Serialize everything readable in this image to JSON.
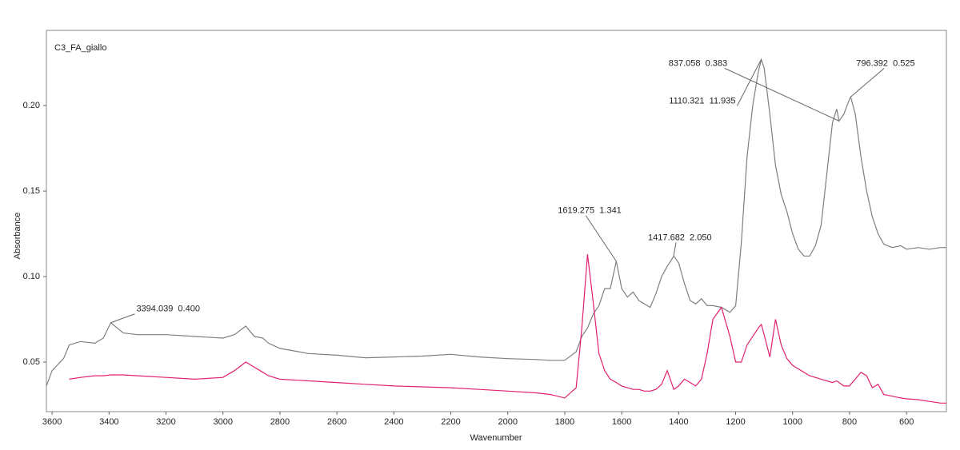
{
  "chart_data": {
    "type": "line",
    "title": "C3_FA_giallo",
    "x_label": "Wavenumber",
    "y_label": "Absorbance",
    "xlim": [
      3620,
      460
    ],
    "ylim": [
      0.021,
      0.244
    ],
    "xticks": [
      3600,
      3400,
      3200,
      3000,
      2800,
      2600,
      2400,
      2200,
      2000,
      1800,
      1600,
      1400,
      1200,
      1000,
      800,
      600
    ],
    "yticks": [
      0.05,
      {
        "value": 0.1,
        "label": "0.10"
      },
      0.15,
      {
        "value": 0.2,
        "label": "0.20"
      }
    ],
    "x": [
      3620,
      3600,
      3560,
      3540,
      3500,
      3450,
      3420,
      3394,
      3350,
      3300,
      3200,
      3100,
      3000,
      2960,
      2920,
      2890,
      2860,
      2840,
      2800,
      2700,
      2600,
      2500,
      2400,
      2300,
      2200,
      2100,
      2000,
      1900,
      1850,
      1800,
      1760,
      1740,
      1720,
      1700,
      1680,
      1660,
      1640,
      1619,
      1600,
      1580,
      1560,
      1540,
      1520,
      1500,
      1480,
      1460,
      1440,
      1417,
      1400,
      1380,
      1360,
      1340,
      1320,
      1300,
      1280,
      1250,
      1220,
      1200,
      1180,
      1160,
      1140,
      1120,
      1110,
      1100,
      1080,
      1060,
      1040,
      1020,
      1000,
      980,
      960,
      940,
      920,
      900,
      880,
      860,
      845,
      837,
      820,
      800,
      796,
      780,
      760,
      740,
      720,
      700,
      680,
      650,
      620,
      600,
      560,
      520,
      480,
      460
    ],
    "series": [
      {
        "color": "#7f7f7f",
        "values": [
          0.036,
          0.045,
          0.052,
          0.06,
          0.062,
          0.061,
          0.064,
          0.073,
          0.067,
          0.066,
          0.066,
          0.065,
          0.064,
          0.066,
          0.071,
          0.065,
          0.064,
          0.061,
          0.058,
          0.055,
          0.054,
          0.0525,
          0.053,
          0.0535,
          0.0545,
          0.053,
          0.052,
          0.0515,
          0.051,
          0.051,
          0.056,
          0.065,
          0.07,
          0.078,
          0.083,
          0.093,
          0.093,
          0.109,
          0.093,
          0.088,
          0.091,
          0.086,
          0.084,
          0.082,
          0.09,
          0.1,
          0.106,
          0.112,
          0.108,
          0.096,
          0.086,
          0.084,
          0.087,
          0.083,
          0.083,
          0.082,
          0.079,
          0.083,
          0.12,
          0.17,
          0.2,
          0.22,
          0.227,
          0.222,
          0.195,
          0.165,
          0.148,
          0.138,
          0.125,
          0.116,
          0.112,
          0.112,
          0.118,
          0.13,
          0.16,
          0.19,
          0.198,
          0.191,
          0.195,
          0.204,
          0.205,
          0.195,
          0.17,
          0.15,
          0.135,
          0.125,
          0.119,
          0.117,
          0.118,
          0.116,
          0.117,
          0.116,
          0.117,
          0.117
        ]
      },
      {
        "color": "#e0206f",
        "values": [
          null,
          null,
          null,
          0.04,
          0.041,
          0.042,
          0.042,
          0.0425,
          0.0425,
          0.042,
          0.041,
          0.04,
          0.041,
          0.045,
          0.05,
          0.047,
          0.044,
          0.042,
          0.04,
          0.039,
          0.038,
          0.037,
          0.036,
          0.0355,
          0.035,
          0.034,
          0.033,
          0.032,
          0.031,
          0.029,
          0.035,
          0.07,
          0.113,
          0.085,
          0.055,
          0.045,
          0.04,
          0.038,
          0.036,
          0.035,
          0.034,
          0.034,
          0.033,
          0.033,
          0.034,
          0.037,
          0.045,
          0.034,
          0.036,
          0.04,
          0.038,
          0.036,
          0.04,
          0.055,
          0.075,
          0.082,
          0.065,
          0.05,
          0.05,
          0.06,
          0.065,
          0.07,
          0.072,
          0.066,
          0.053,
          0.075,
          0.06,
          0.052,
          0.048,
          0.046,
          0.044,
          0.042,
          0.041,
          0.04,
          0.039,
          0.038,
          0.039,
          0.038,
          0.036,
          0.036,
          0.037,
          0.04,
          0.044,
          0.042,
          0.035,
          0.037,
          0.031,
          0.03,
          0.029,
          0.0285,
          0.028,
          0.027,
          0.026,
          0.026
        ]
      }
    ],
    "annotations": [
      {
        "label": "3394.039  0.400",
        "x": 3394.039,
        "y": 0.073
      },
      {
        "label": "1619.275  1.341",
        "x": 1619.275,
        "y": 0.109
      },
      {
        "label": "1417.682  2.050",
        "x": 1417.682,
        "y": 0.112
      },
      {
        "label": "1110.321  11.935",
        "x": 1110.321,
        "y": 0.227
      },
      {
        "label": "837.058  0.383",
        "x": 837.058,
        "y": 0.191
      },
      {
        "label": "796.392  0.525",
        "x": 796.392,
        "y": 0.205
      }
    ]
  }
}
